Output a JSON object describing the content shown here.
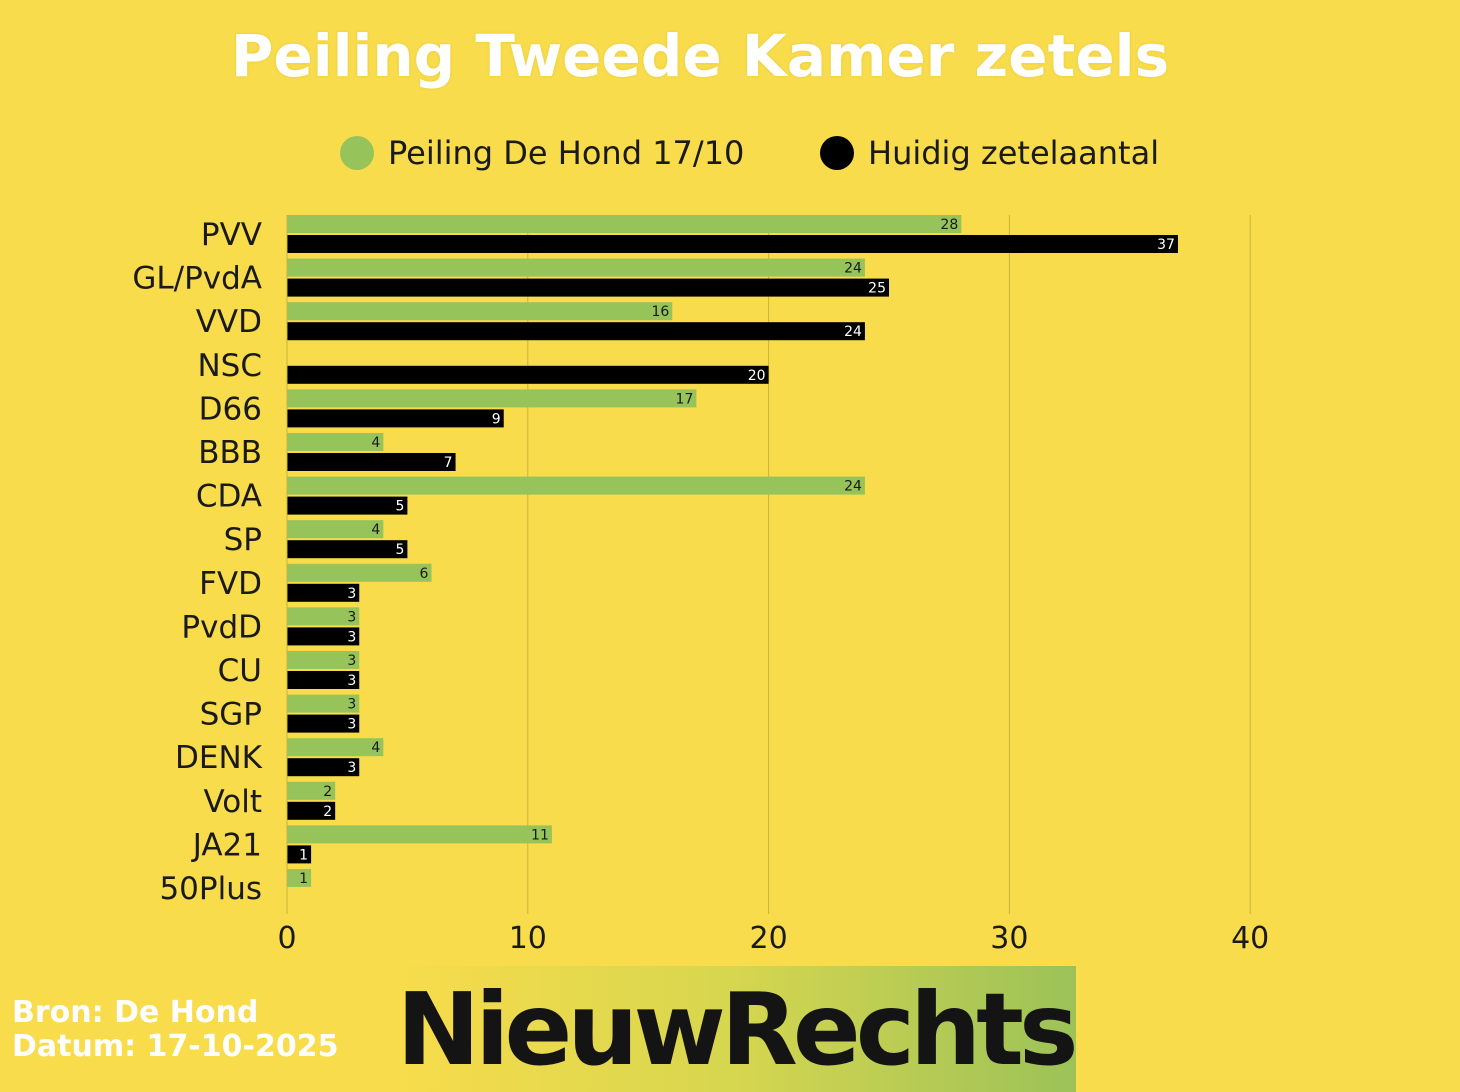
{
  "title": "Peiling Tweede Kamer zetels",
  "legend": [
    {
      "label": "Peiling De Hond 17/10",
      "color": "#96C35A"
    },
    {
      "label": "Huidig zetelaantal",
      "color": "#000000"
    }
  ],
  "footer": {
    "source": "Bron: De Hond",
    "date": "Datum: 17-10-2025",
    "logo": "NieuwRechts"
  },
  "chart_data": {
    "type": "bar",
    "orientation": "horizontal",
    "categories": [
      "PVV",
      "GL/PvdA",
      "VVD",
      "NSC",
      "D66",
      "BBB",
      "CDA",
      "SP",
      "FVD",
      "PvdD",
      "CU",
      "SGP",
      "DENK",
      "Volt",
      "JA21",
      "50Plus"
    ],
    "series": [
      {
        "name": "Peiling De Hond 17/10",
        "color": "#96C35A",
        "values": [
          28,
          24,
          16,
          null,
          17,
          4,
          24,
          4,
          6,
          3,
          3,
          3,
          4,
          2,
          11,
          1
        ]
      },
      {
        "name": "Huidig zetelaantal",
        "color": "#000000",
        "values": [
          37,
          25,
          24,
          20,
          9,
          7,
          5,
          5,
          3,
          3,
          3,
          3,
          3,
          2,
          1,
          null
        ]
      }
    ],
    "xlim": [
      0,
      40
    ],
    "xticks": [
      0,
      10,
      20,
      30,
      40
    ],
    "grid": "vertical",
    "legend_position": "top",
    "data_labels": true
  }
}
